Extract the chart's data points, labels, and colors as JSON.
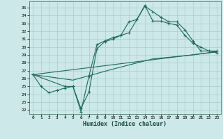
{
  "xlabel": "Humidex (Indice chaleur)",
  "background_color": "#cce8e8",
  "grid_color": "#aacccc",
  "line_color": "#1a6b5a",
  "xlim": [
    -0.5,
    23.5
  ],
  "ylim": [
    21.5,
    35.8
  ],
  "xtick_labels": [
    "0",
    "1",
    "2",
    "3",
    "4",
    "5",
    "6",
    "7",
    "8",
    "9",
    "10",
    "11",
    "12",
    "13",
    "14",
    "15",
    "16",
    "17",
    "18",
    "19",
    "20",
    "21",
    "22",
    "23"
  ],
  "yticks": [
    22,
    23,
    24,
    25,
    26,
    27,
    28,
    29,
    30,
    31,
    32,
    33,
    34,
    35
  ],
  "line1_x": [
    0,
    1,
    2,
    3,
    4,
    5,
    6,
    7,
    8,
    9,
    10,
    11,
    12,
    13,
    14,
    15,
    16,
    17,
    18,
    19,
    20,
    21,
    22,
    23
  ],
  "line1_y": [
    26.5,
    25.0,
    24.2,
    24.5,
    24.8,
    25.0,
    22.2,
    24.3,
    29.8,
    30.7,
    31.0,
    31.5,
    33.2,
    33.5,
    35.2,
    34.5,
    33.8,
    33.2,
    33.2,
    32.2,
    30.8,
    29.5,
    29.5,
    29.5
  ],
  "line2_x": [
    0,
    4,
    5,
    6,
    7,
    8,
    9,
    10,
    11,
    12,
    13,
    14,
    15,
    16,
    17,
    18,
    19,
    20,
    21,
    22,
    23
  ],
  "line2_y": [
    26.5,
    25.0,
    25.0,
    21.8,
    26.3,
    30.3,
    30.8,
    31.2,
    31.5,
    31.8,
    33.5,
    35.3,
    33.3,
    33.3,
    33.0,
    32.8,
    31.5,
    30.5,
    30.0,
    29.5,
    29.3
  ],
  "line3_x": [
    0,
    23
  ],
  "line3_y": [
    26.5,
    29.4
  ],
  "line4_x": [
    0,
    5,
    10,
    15,
    20,
    23
  ],
  "line4_y": [
    26.5,
    25.8,
    27.2,
    28.5,
    29.0,
    29.4
  ]
}
